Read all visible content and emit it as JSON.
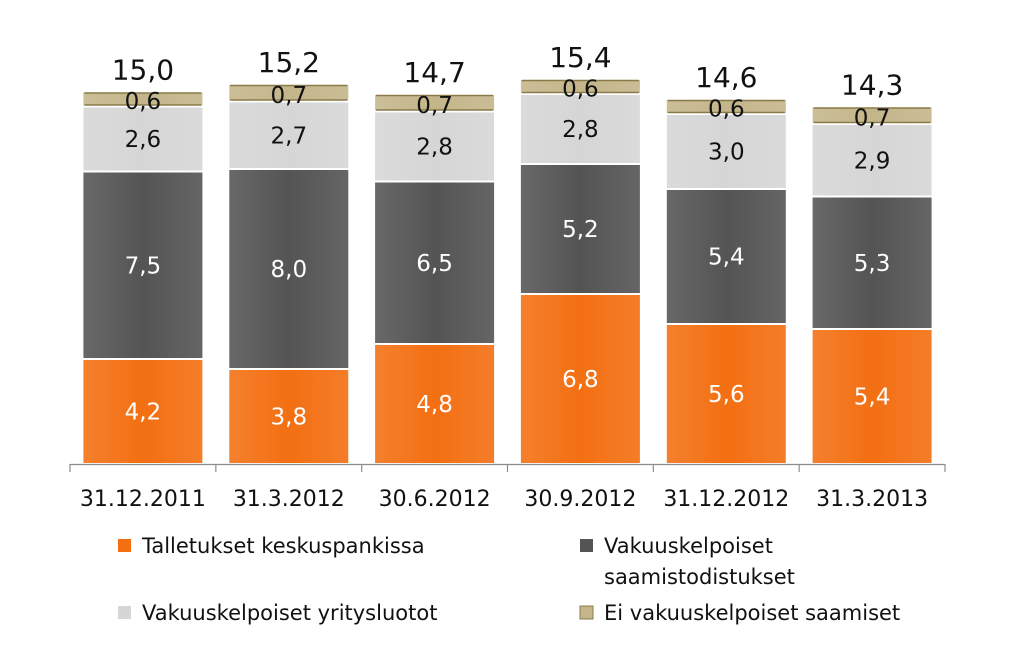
{
  "chart_data": {
    "type": "bar",
    "stacked": true,
    "title": "",
    "xlabel": "",
    "ylabel": "",
    "ylim": [
      0,
      16
    ],
    "grid": false,
    "legend_position": "bottom",
    "categories": [
      "31.12.2011",
      "31.3.2012",
      "30.6.2012",
      "30.9.2012",
      "31.12.2012",
      "31.3.2013"
    ],
    "totals": [
      "15,0",
      "15,2",
      "14,7",
      "15,4",
      "14,6",
      "14,3"
    ],
    "series": [
      {
        "name": "Talletukset keskuspankissa",
        "name_lines": [
          "Talletukset keskuspankissa"
        ],
        "color": "#F36F12",
        "label_color": "#FFFFFF",
        "values": [
          4.2,
          3.8,
          4.8,
          6.8,
          5.6,
          5.4
        ],
        "labels": [
          "4,2",
          "3,8",
          "4,8",
          "6,8",
          "5,6",
          "5,4"
        ]
      },
      {
        "name": "Vakuuskelpoiset saamistodistukset",
        "name_lines": [
          "Vakuuskelpoiset",
          "saamistodistukset"
        ],
        "color": "#545454",
        "label_color": "#FFFFFF",
        "values": [
          7.5,
          8.0,
          6.5,
          5.2,
          5.4,
          5.3
        ],
        "labels": [
          "7,5",
          "8,0",
          "6,5",
          "5,2",
          "5,4",
          "5,3"
        ]
      },
      {
        "name": "Vakuuskelpoiset yritysluotot",
        "name_lines": [
          "Vakuuskelpoiset yritysluotot"
        ],
        "color": "#D6D6D6",
        "label_color": "#111111",
        "values": [
          2.6,
          2.7,
          2.8,
          2.8,
          3.0,
          2.9
        ],
        "labels": [
          "2,6",
          "2,7",
          "2,8",
          "2,8",
          "3,0",
          "2,9"
        ]
      },
      {
        "name": "Ei vakuuskelpoiset saamiset",
        "name_lines": [
          "Ei vakuuskelpoiset saamiset"
        ],
        "color": "#C4B68A",
        "label_color": "#111111",
        "values": [
          0.6,
          0.7,
          0.7,
          0.6,
          0.6,
          0.7
        ],
        "labels": [
          "0,6",
          "0,7",
          "0,7",
          "0,6",
          "0,6",
          "0,7"
        ]
      }
    ]
  }
}
